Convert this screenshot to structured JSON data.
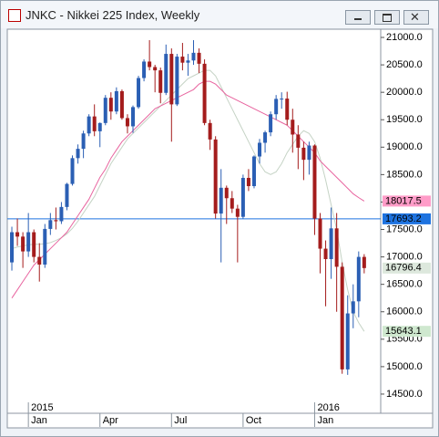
{
  "chart_data": {
    "type": "candlestick",
    "title": "JNKC - Nikkei 225 Index, Weekly",
    "up_color": "#2b5fb4",
    "down_color": "#a41c1c",
    "open": [
      16900,
      17450,
      17370,
      17100,
      17450,
      17000,
      16860,
      17510,
      17670,
      17650,
      17910,
      18330,
      18800,
      18970,
      19250,
      19560,
      19290,
      19440,
      19900,
      19650,
      20020,
      19530,
      19380,
      19730,
      20260,
      20560,
      20460,
      20400,
      19990,
      20700,
      19780,
      20650,
      20540,
      20580,
      20720,
      20520,
      19440,
      19140,
      17790,
      18260,
      18070,
      17880,
      17730,
      18440,
      18290,
      18830,
      19080,
      19270,
      19600,
      19880,
      19885,
      19500,
      19230,
      18990,
      18770,
      19030,
      17700,
      17150,
      16960,
      17520,
      16820,
      14950,
      15970,
      16190,
      17000
    ],
    "high": [
      17550,
      17700,
      17450,
      17800,
      17500,
      17250,
      17600,
      17800,
      17900,
      18000,
      18350,
      18850,
      19050,
      19300,
      19600,
      19780,
      19450,
      19950,
      20000,
      20090,
      20050,
      19600,
      19760,
      20300,
      20600,
      20950,
      20500,
      20450,
      20870,
      20800,
      20700,
      20900,
      20700,
      20950,
      20800,
      20600,
      19500,
      19200,
      18600,
      18300,
      18200,
      17950,
      18500,
      18600,
      18850,
      19150,
      19300,
      19650,
      19950,
      20000,
      20010,
      19700,
      19400,
      19100,
      19100,
      19050,
      17800,
      17300,
      17900,
      17800,
      16900,
      16300,
      16500,
      17100,
      17050
    ],
    "low": [
      16750,
      17200,
      16800,
      17000,
      16900,
      16550,
      16800,
      17400,
      17500,
      17600,
      17850,
      18300,
      18700,
      18800,
      19200,
      19200,
      19000,
      19400,
      19500,
      19600,
      19500,
      19250,
      19260,
      19700,
      20200,
      20400,
      20000,
      19800,
      19950,
      19100,
      19750,
      20400,
      20300,
      20500,
      20350,
      19400,
      18950,
      17700,
      16900,
      17600,
      17800,
      16900,
      17700,
      18200,
      18250,
      18700,
      18900,
      19200,
      19500,
      19700,
      19400,
      18900,
      18600,
      18400,
      18500,
      17400,
      16700,
      16100,
      16600,
      16000,
      14870,
      14850,
      15700,
      15900,
      16700
    ],
    "close": [
      17450,
      17370,
      17100,
      17450,
      17000,
      16860,
      17510,
      17670,
      17650,
      17910,
      18330,
      18800,
      18970,
      19250,
      19560,
      19290,
      19440,
      19900,
      19650,
      20020,
      19530,
      19380,
      19730,
      20260,
      20560,
      20460,
      20400,
      19990,
      20700,
      19780,
      20650,
      20540,
      20580,
      20720,
      20520,
      19440,
      19140,
      17790,
      18260,
      18070,
      17880,
      17730,
      18440,
      18290,
      18830,
      19080,
      19270,
      19600,
      19880,
      19885,
      19500,
      19230,
      18990,
      18770,
      19030,
      17700,
      17150,
      16960,
      17520,
      16820,
      14950,
      15970,
      16190,
      17000,
      16796.4
    ],
    "series": [
      {
        "color": "#c5d3c5",
        "values": [
          17150,
          17180,
          17200,
          17220,
          17230,
          17230,
          17240,
          17260,
          17300,
          17350,
          17420,
          17520,
          17650,
          17800,
          17950,
          18100,
          18300,
          18500,
          18700,
          18850,
          19000,
          19150,
          19250,
          19350,
          19450,
          19550,
          19650,
          19750,
          19850,
          19950,
          20050,
          20150,
          20250,
          20300,
          20350,
          20400,
          20400,
          20300,
          20100,
          19900,
          19700,
          19500,
          19300,
          19100,
          18900,
          18700,
          18550,
          18500,
          18550,
          18700,
          18900,
          19050,
          19200,
          19300,
          19250,
          19100,
          18800,
          18400,
          17950,
          17500,
          16900,
          16400,
          16000,
          15800,
          15643.1
        ],
        "marker_bg": "#cfe8cf"
      },
      {
        "color": "#e8649f",
        "values": [
          16250,
          16400,
          16550,
          16700,
          16850,
          16950,
          17050,
          17150,
          17250,
          17350,
          17450,
          17600,
          17750,
          17900,
          18050,
          18250,
          18450,
          18600,
          18800,
          18950,
          19100,
          19200,
          19300,
          19400,
          19500,
          19600,
          19700,
          19750,
          19800,
          19850,
          19900,
          19950,
          20000,
          20050,
          20150,
          20200,
          20200,
          20150,
          20050,
          19950,
          19900,
          19850,
          19800,
          19750,
          19700,
          19650,
          19600,
          19550,
          19500,
          19450,
          19400,
          19300,
          19200,
          19100,
          19000,
          18900,
          18750,
          18650,
          18550,
          18450,
          18350,
          18250,
          18150,
          18080,
          18017.5
        ],
        "marker_bg": "#ff9cc8"
      }
    ],
    "hline": {
      "value": 17693.2,
      "color": "#1e73e0"
    },
    "close_marker_bg": "#dde8dd",
    "xlim": [
      -0.5,
      67
    ],
    "xticks": [
      {
        "value": 3,
        "label": "Jan"
      },
      {
        "value": 16,
        "label": "Apr"
      },
      {
        "value": 29,
        "label": "Jul"
      },
      {
        "value": 42,
        "label": "Oct"
      },
      {
        "value": 55,
        "label": "Jan"
      }
    ],
    "year_labels": [
      {
        "value": 3,
        "label": "2015"
      },
      {
        "value": 55,
        "label": "2016"
      }
    ],
    "ylim": [
      14150,
      21150
    ],
    "yticks": [
      {
        "value": 14500,
        "label": "14500.0"
      },
      {
        "value": 15000,
        "label": "15000.0"
      },
      {
        "value": 15500,
        "label": "15500.0"
      },
      {
        "value": 16000,
        "label": "16000.0"
      },
      {
        "value": 16500,
        "label": "16500.0"
      },
      {
        "value": 17000,
        "label": "17000.0"
      },
      {
        "value": 17500,
        "label": "17500.0"
      },
      {
        "value": 18000,
        "label": "18000.0"
      },
      {
        "value": 18500,
        "label": "18500.0"
      },
      {
        "value": 19000,
        "label": "19000.0"
      },
      {
        "value": 19500,
        "label": "19500.0"
      },
      {
        "value": 20000,
        "label": "20000.0"
      },
      {
        "value": 20500,
        "label": "20500.0"
      },
      {
        "value": 21000,
        "label": "21000.0"
      }
    ]
  }
}
